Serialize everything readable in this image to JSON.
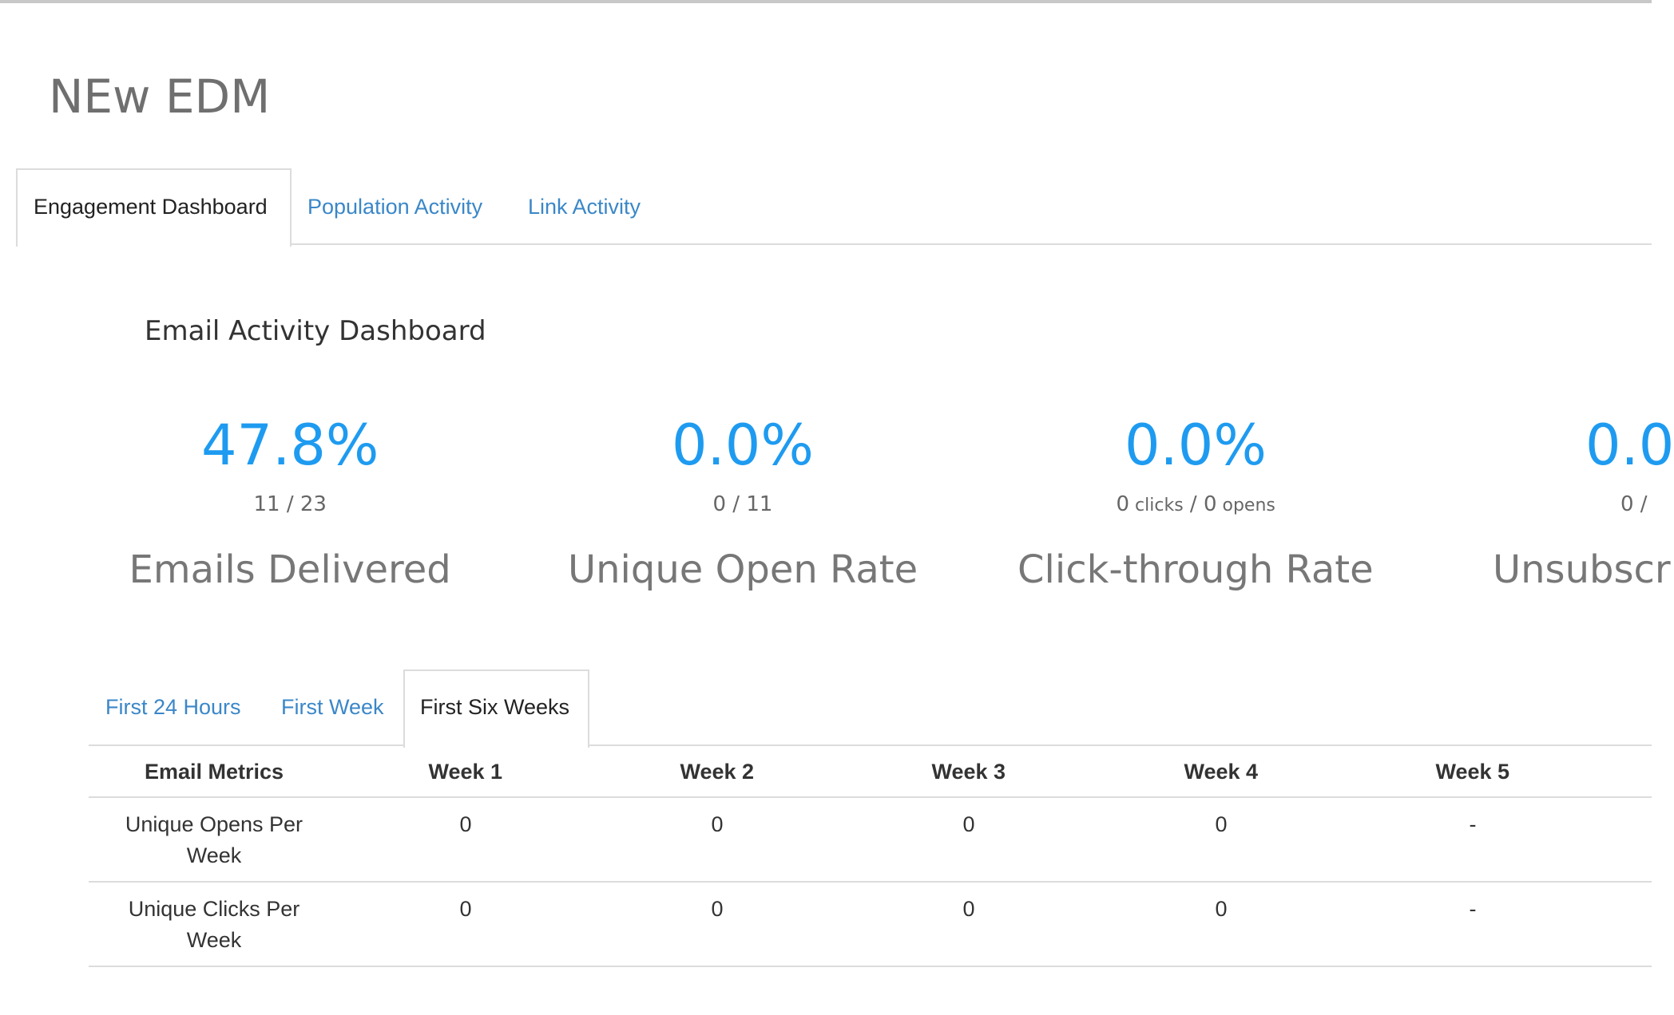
{
  "header": {
    "title": "NEw EDM"
  },
  "tabs": [
    "Engagement Dashboard",
    "Population Activity",
    "Link Activity"
  ],
  "dashboard": {
    "title": "Email Activity Dashboard",
    "stats": [
      {
        "value": "47.8%",
        "detail": "11 / 23",
        "label": "Emails Delivered"
      },
      {
        "value": "0.0%",
        "detail": "0 / 11",
        "label": "Unique Open Rate"
      },
      {
        "value": "0.0%",
        "detail": [
          "0",
          "clicks",
          "/",
          "0",
          "opens"
        ],
        "label": "Click-through Rate"
      },
      {
        "value": "0.0",
        "detail": "0 /",
        "label": "Unsubscr"
      }
    ]
  },
  "period_tabs": [
    "First 24 Hours",
    "First Week",
    "First Six Weeks"
  ],
  "table": {
    "header": [
      "Email Metrics",
      "Week 1",
      "Week 2",
      "Week 3",
      "Week 4",
      "Week 5"
    ],
    "rows": [
      [
        "Unique Opens Per Week",
        "0",
        "0",
        "0",
        "0",
        "-"
      ],
      [
        "Unique Clicks Per Week",
        "0",
        "0",
        "0",
        "0",
        "-"
      ]
    ]
  }
}
